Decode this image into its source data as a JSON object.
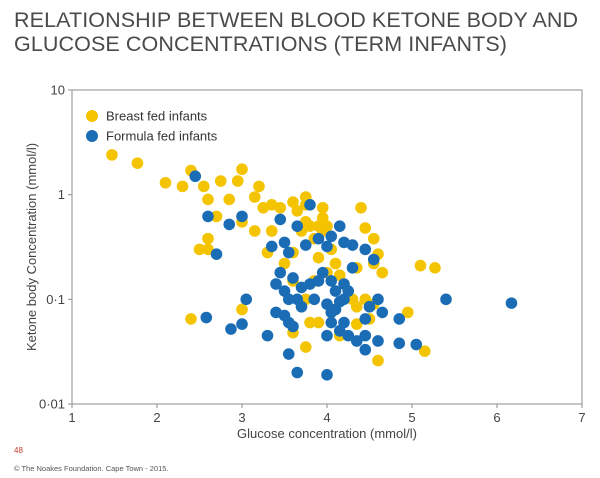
{
  "title_lines": [
    "RELATIONSHIP BETWEEN BLOOD KETONE BODY AND",
    "GLUCOSE CONCENTRATIONS (TERM INFANTS)"
  ],
  "footer": {
    "page_number": "48",
    "copyright": "© The Noakes Foundation. Cape Town - 2015."
  },
  "colors": {
    "breast": "#f5c400",
    "formula": "#1a6db5",
    "frame": "#8c8c8c",
    "grid": "#e2e2e2"
  },
  "chart_data": {
    "type": "scatter",
    "title": "",
    "xlabel": "Glucose concentration (mmol/l)",
    "ylabel": "Ketone body Concentration (mmol/l)",
    "xlim": [
      1,
      7
    ],
    "ylim": [
      0.01,
      10
    ],
    "y_scale": "log",
    "x_ticks": [
      "1",
      "2",
      "3",
      "4",
      "5",
      "6",
      "7"
    ],
    "y_ticks": [
      {
        "value": 10,
        "label": "10"
      },
      {
        "value": 1,
        "label": "1"
      },
      {
        "value": 0.1,
        "label": "0·1"
      },
      {
        "value": 0.01,
        "label": "0·01"
      }
    ],
    "grid": false,
    "legend_position": "top-left",
    "series": [
      {
        "name": "Breast fed infants",
        "color": "#f5c400",
        "points": [
          [
            1.47,
            2.4
          ],
          [
            1.77,
            2.0
          ],
          [
            2.1,
            1.3
          ],
          [
            2.3,
            1.2
          ],
          [
            2.4,
            1.7
          ],
          [
            2.55,
            1.2
          ],
          [
            2.6,
            0.9
          ],
          [
            2.7,
            0.62
          ],
          [
            2.75,
            1.35
          ],
          [
            2.85,
            0.9
          ],
          [
            2.95,
            1.35
          ],
          [
            3.0,
            1.75
          ],
          [
            3.0,
            0.55
          ],
          [
            2.5,
            0.3
          ],
          [
            2.6,
            0.38
          ],
          [
            2.6,
            0.3
          ],
          [
            3.15,
            0.95
          ],
          [
            3.2,
            1.2
          ],
          [
            3.25,
            0.75
          ],
          [
            3.35,
            0.8
          ],
          [
            3.45,
            0.75
          ],
          [
            3.6,
            0.85
          ],
          [
            3.65,
            0.7
          ],
          [
            3.75,
            0.95
          ],
          [
            3.75,
            0.8
          ],
          [
            3.75,
            0.55
          ],
          [
            3.8,
            0.5
          ],
          [
            3.7,
            0.45
          ],
          [
            3.9,
            0.5
          ],
          [
            3.95,
            0.75
          ],
          [
            3.95,
            0.6
          ],
          [
            3.95,
            0.45
          ],
          [
            4.0,
            0.5
          ],
          [
            3.85,
            0.38
          ],
          [
            4.05,
            0.3
          ],
          [
            3.9,
            0.25
          ],
          [
            4.1,
            0.22
          ],
          [
            4.0,
            0.18
          ],
          [
            4.15,
            0.17
          ],
          [
            3.6,
            0.28
          ],
          [
            3.35,
            0.45
          ],
          [
            4.4,
            0.75
          ],
          [
            4.45,
            0.48
          ],
          [
            4.55,
            0.38
          ],
          [
            4.6,
            0.27
          ],
          [
            4.35,
            0.2
          ],
          [
            4.55,
            0.22
          ],
          [
            4.65,
            0.18
          ],
          [
            4.3,
            0.1
          ],
          [
            4.35,
            0.085
          ],
          [
            4.45,
            0.1
          ],
          [
            4.5,
            0.065
          ],
          [
            4.55,
            0.09
          ],
          [
            4.6,
            0.026
          ],
          [
            4.95,
            0.075
          ],
          [
            5.15,
            0.032
          ],
          [
            5.1,
            0.21
          ],
          [
            5.27,
            0.2
          ],
          [
            3.0,
            0.08
          ],
          [
            2.4,
            0.065
          ],
          [
            3.6,
            0.048
          ],
          [
            3.8,
            0.06
          ],
          [
            3.75,
            0.035
          ],
          [
            3.9,
            0.06
          ],
          [
            4.35,
            0.058
          ],
          [
            4.15,
            0.045
          ],
          [
            3.75,
            0.1
          ],
          [
            3.3,
            0.28
          ],
          [
            3.15,
            0.45
          ],
          [
            3.85,
            0.15
          ],
          [
            3.5,
            0.22
          ],
          [
            3.6,
            0.15
          ]
        ]
      },
      {
        "name": "Formula fed infants",
        "color": "#1a6db5",
        "points": [
          [
            2.45,
            1.5
          ],
          [
            2.6,
            0.62
          ],
          [
            2.85,
            0.52
          ],
          [
            3.0,
            0.62
          ],
          [
            2.7,
            0.27
          ],
          [
            3.8,
            0.8
          ],
          [
            3.45,
            0.58
          ],
          [
            3.65,
            0.5
          ],
          [
            3.35,
            0.32
          ],
          [
            3.5,
            0.35
          ],
          [
            3.55,
            0.28
          ],
          [
            3.75,
            0.33
          ],
          [
            3.9,
            0.38
          ],
          [
            4.0,
            0.32
          ],
          [
            4.05,
            0.4
          ],
          [
            4.15,
            0.5
          ],
          [
            4.2,
            0.35
          ],
          [
            4.3,
            0.33
          ],
          [
            4.3,
            0.2
          ],
          [
            4.45,
            0.3
          ],
          [
            4.55,
            0.24
          ],
          [
            3.45,
            0.18
          ],
          [
            3.6,
            0.16
          ],
          [
            3.7,
            0.13
          ],
          [
            3.8,
            0.14
          ],
          [
            3.9,
            0.15
          ],
          [
            3.95,
            0.18
          ],
          [
            4.05,
            0.15
          ],
          [
            4.1,
            0.12
          ],
          [
            4.2,
            0.14
          ],
          [
            4.25,
            0.12
          ],
          [
            3.4,
            0.14
          ],
          [
            3.5,
            0.12
          ],
          [
            3.55,
            0.1
          ],
          [
            3.65,
            0.1
          ],
          [
            3.7,
            0.085
          ],
          [
            3.85,
            0.1
          ],
          [
            4.0,
            0.09
          ],
          [
            4.05,
            0.075
          ],
          [
            4.1,
            0.08
          ],
          [
            4.15,
            0.095
          ],
          [
            4.2,
            0.1
          ],
          [
            4.05,
            0.06
          ],
          [
            4.15,
            0.05
          ],
          [
            4.25,
            0.045
          ],
          [
            4.35,
            0.04
          ],
          [
            4.45,
            0.045
          ],
          [
            4.45,
            0.065
          ],
          [
            4.5,
            0.085
          ],
          [
            4.6,
            0.1
          ],
          [
            4.65,
            0.075
          ],
          [
            3.5,
            0.07
          ],
          [
            3.55,
            0.06
          ],
          [
            3.4,
            0.075
          ],
          [
            3.6,
            0.055
          ],
          [
            3.3,
            0.045
          ],
          [
            3.55,
            0.03
          ],
          [
            3.65,
            0.02
          ],
          [
            4.0,
            0.019
          ],
          [
            4.0,
            0.045
          ],
          [
            4.45,
            0.033
          ],
          [
            4.6,
            0.04
          ],
          [
            4.85,
            0.065
          ],
          [
            4.85,
            0.038
          ],
          [
            5.05,
            0.037
          ],
          [
            5.4,
            0.1
          ],
          [
            6.17,
            0.092
          ],
          [
            2.58,
            0.067
          ],
          [
            2.87,
            0.052
          ],
          [
            3.0,
            0.058
          ],
          [
            3.05,
            0.1
          ],
          [
            4.2,
            0.06
          ]
        ]
      }
    ]
  }
}
